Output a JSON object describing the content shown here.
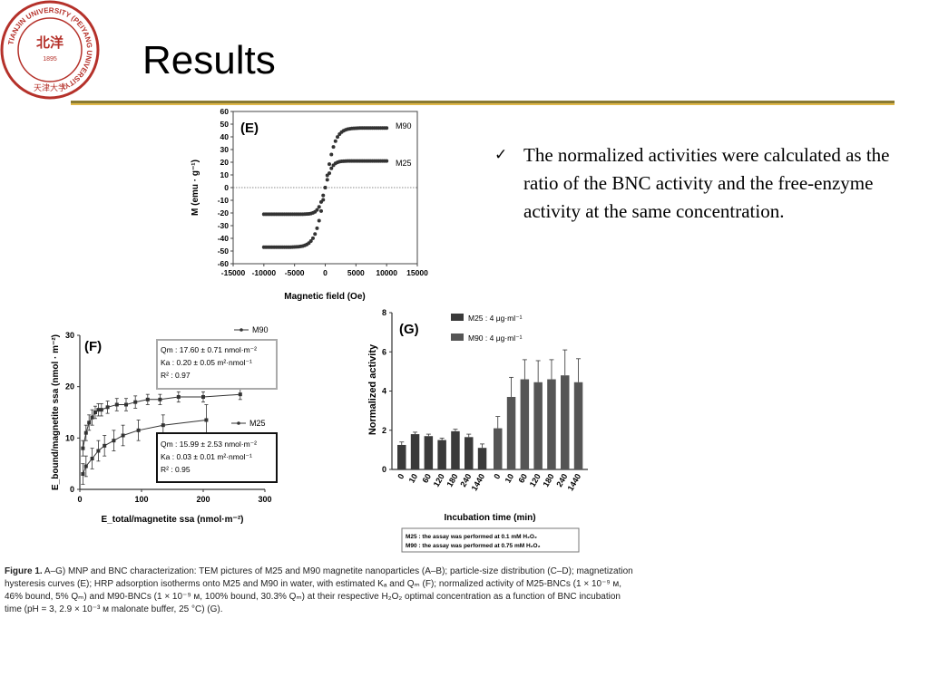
{
  "slide": {
    "title": "Results",
    "logo": {
      "ring_text": "TIANJIN UNIVERSITY (PEIYANG UNIVERSITY)",
      "center_text": "北洋",
      "year": "1895",
      "bottom_text": "天津大学",
      "color": "#b5312a"
    },
    "bullet": {
      "icon": "check-mark-icon",
      "text": "The normalized activities were calculated as the ratio of the BNC activity and the free-enzyme activity at the same concentration."
    },
    "caption": {
      "label": "Figure 1.",
      "text": "A–G) MNP and BNC characterization: TEM pictures of M25 and M90 magnetite nanoparticles (A–B); particle-size distribution (C–D); magnetization hysteresis curves (E); HRP adsorption isotherms onto M25 and M90 in water, with estimated Kₐ and Qₘ (F); normalized activity of M25-BNCs (1 × 10⁻⁹ ᴍ, 46% bound, 5% Qₘ) and M90-BNCs (1 × 10⁻⁹ ᴍ, 100% bound, 30.3% Qₘ) at their respective H₂O₂ optimal concentration as a function of BNC incubation time (pH = 3, 2.9 × 10⁻³ ᴍ malonate buffer, 25 °C) (G)."
    },
    "colors": {
      "rule_dark": "#8a7a32",
      "rule_gold": "#e0b84a",
      "marker": "#333333"
    }
  },
  "chart_data": [
    {
      "type": "scatter",
      "panel": "(E)",
      "xlabel": "Magnetic field (Oe)",
      "ylabel": "M (emu · g⁻¹)",
      "xlim": [
        -15000,
        15000
      ],
      "ylim": [
        -60,
        60
      ],
      "xticks": [
        "-15000",
        "-10000",
        "-5000",
        "0",
        "5000",
        "10000",
        "15000"
      ],
      "yticks": [
        "60",
        "50",
        "40",
        "30",
        "20",
        "10",
        "0",
        "-10",
        "-20",
        "-30",
        "-40",
        "-50",
        "-60"
      ],
      "series": [
        {
          "name": "M90",
          "Ms": 47,
          "H0": 1600
        },
        {
          "name": "M25",
          "Ms": 21,
          "H0": 1100
        }
      ]
    },
    {
      "type": "scatter",
      "panel": "(F)",
      "xlabel": "E_total/magnetite ssa (nmol·m⁻²)",
      "ylabel": "E_bound/magnetite ssa (nmol · m⁻²)",
      "xlim": [
        0,
        300
      ],
      "ylim": [
        0,
        30
      ],
      "xticks": [
        "0",
        "100",
        "200",
        "300"
      ],
      "yticks": [
        "0",
        "10",
        "20",
        "30"
      ],
      "series": [
        {
          "name": "M90",
          "x": [
            5,
            10,
            15,
            20,
            25,
            30,
            35,
            45,
            60,
            75,
            90,
            110,
            130,
            160,
            200,
            260
          ],
          "y": [
            8,
            11,
            13,
            14,
            15,
            15.5,
            15.5,
            16,
            16.5,
            16.5,
            17,
            17.5,
            17.5,
            18,
            18,
            18.5
          ],
          "err": [
            1.5,
            1.5,
            1.5,
            1.5,
            1.2,
            1.2,
            1.2,
            1.2,
            1.2,
            1.2,
            1.2,
            1.0,
            1.0,
            1.0,
            1.0,
            1.0
          ]
        },
        {
          "name": "M25",
          "x": [
            5,
            10,
            20,
            30,
            40,
            55,
            70,
            95,
            135,
            205
          ],
          "y": [
            3,
            4.5,
            6,
            7.5,
            8.5,
            9.5,
            10.5,
            11.5,
            12.5,
            13.5
          ],
          "err": [
            2,
            2,
            2,
            2,
            2,
            2,
            2,
            2,
            2,
            3
          ]
        }
      ],
      "annotations": {
        "M90": [
          "Qm : 17.60 ± 0.71 nmol·m⁻²",
          "Ka  :  0.20 ± 0.05 m²·nmol⁻¹",
          "R²   :  0.97"
        ],
        "M25": [
          "Qm : 15.99 ± 2.53 nmol·m⁻²",
          "Ka  :  0.03 ± 0.01 m²·nmol⁻¹",
          "R²   :  0.95"
        ]
      }
    },
    {
      "type": "bar",
      "panel": "(G)",
      "xlabel": "Incubation time (min)",
      "ylabel": "Normalized activity",
      "ylim": [
        0,
        8
      ],
      "yticks": [
        "0",
        "2",
        "4",
        "6",
        "8"
      ],
      "categories": [
        "0",
        "10",
        "60",
        "120",
        "180",
        "240",
        "1440"
      ],
      "series": [
        {
          "name": "M25 : 4 μg·ml⁻¹",
          "values": [
            1.25,
            1.8,
            1.7,
            1.5,
            1.95,
            1.65,
            1.1
          ],
          "err": [
            0.15,
            0.1,
            0.1,
            0.1,
            0.1,
            0.15,
            0.2
          ]
        },
        {
          "name": "M90 : 4 μg·ml⁻¹",
          "values": [
            2.1,
            3.7,
            4.6,
            4.45,
            4.6,
            4.8,
            4.45
          ],
          "err": [
            0.6,
            1.0,
            1.0,
            1.1,
            1.0,
            1.3,
            1.2
          ]
        }
      ],
      "notes": [
        "M25 : the assay was performed at 0.1 mM H₂O₂",
        "M90 : the assay was performed at 0.75 mM H₂O₂"
      ]
    }
  ]
}
